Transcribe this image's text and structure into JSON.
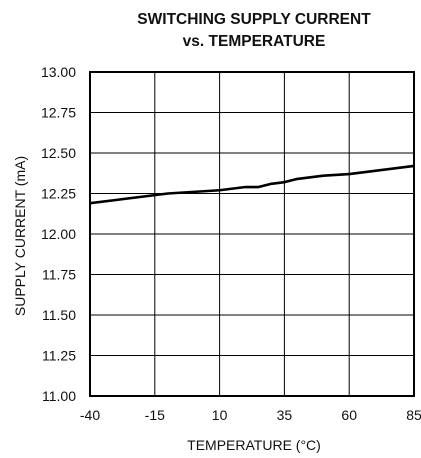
{
  "chart_data": {
    "type": "line",
    "title_line1": "SWITCHING SUPPLY CURRENT",
    "title_line2": "vs. TEMPERATURE",
    "xlabel": "TEMPERATURE (°C)",
    "ylabel": "SUPPLY CURRENT (mA)",
    "xlim": [
      -40,
      85
    ],
    "ylim": [
      11.0,
      13.0
    ],
    "x_ticks": [
      -40,
      -15,
      10,
      35,
      60,
      85
    ],
    "x_tick_labels": [
      "-40",
      "-15",
      "10",
      "35",
      "60",
      "85"
    ],
    "y_ticks": [
      11.0,
      11.25,
      11.5,
      11.75,
      12.0,
      12.25,
      12.5,
      12.75,
      13.0
    ],
    "y_tick_labels": [
      "11.00",
      "11.25",
      "11.50",
      "11.75",
      "12.00",
      "12.25",
      "12.50",
      "12.75",
      "13.00"
    ],
    "grid": true,
    "series": [
      {
        "x": [
          -40,
          -30,
          -20,
          -15,
          -10,
          0,
          10,
          15,
          20,
          25,
          30,
          35,
          40,
          45,
          50,
          60,
          70,
          85
        ],
        "y": [
          12.19,
          12.21,
          12.23,
          12.24,
          12.25,
          12.26,
          12.27,
          12.28,
          12.29,
          12.29,
          12.31,
          12.32,
          12.34,
          12.35,
          12.36,
          12.37,
          12.39,
          12.42
        ]
      }
    ],
    "color": "#000000"
  }
}
